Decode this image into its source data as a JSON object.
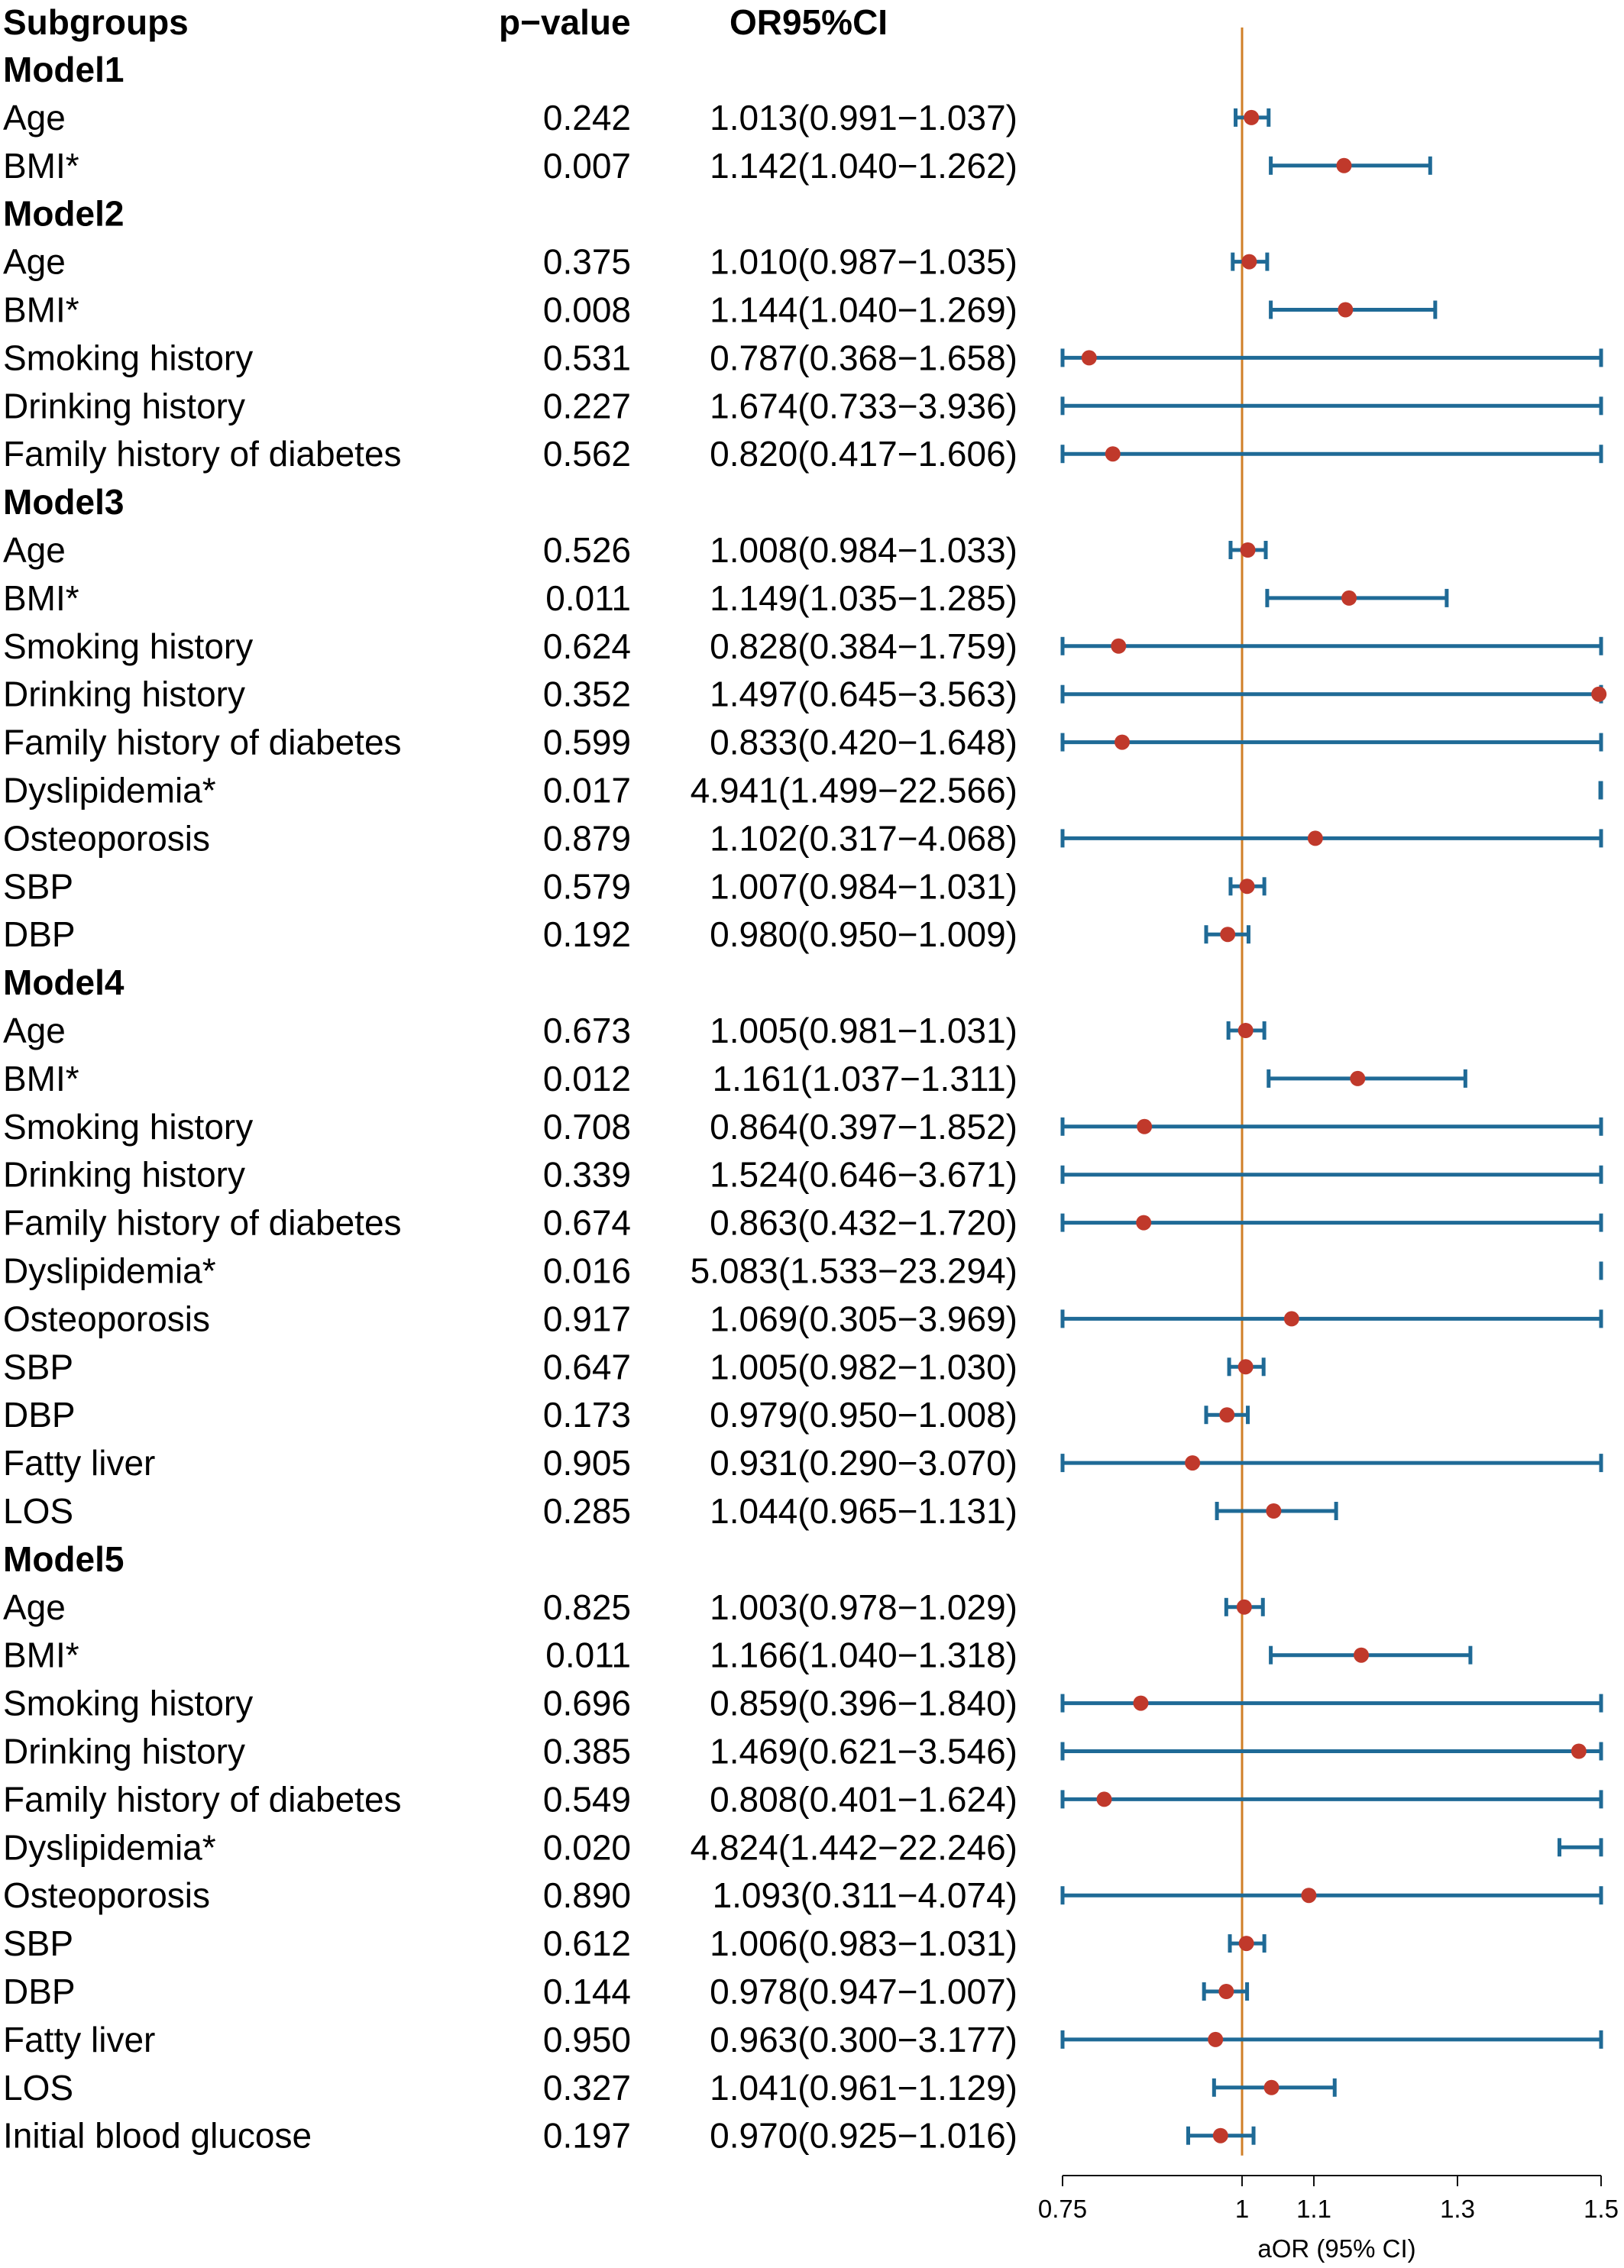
{
  "chart_data": {
    "type": "forest",
    "headers": {
      "subgroups": "Subgroups",
      "pvalue": "p−value",
      "or": "OR95%CI"
    },
    "xlabel": "aOR (95% CI)",
    "xlim": [
      0.75,
      1.5
    ],
    "reference_line": 1,
    "ticks": [
      {
        "value": 0.75,
        "label": "0.75"
      },
      {
        "value": 1.0,
        "label": "1"
      },
      {
        "value": 1.1,
        "label": "1.1"
      },
      {
        "value": 1.3,
        "label": "1.3"
      },
      {
        "value": 1.5,
        "label": "1.5"
      }
    ],
    "colors": {
      "point": "#c0392b",
      "ci": "#1f6a96",
      "reference": "#d07f27"
    },
    "models": [
      {
        "name": "Model1",
        "rows": [
          {
            "label": "Age",
            "p": "0.242",
            "or_text": "1.013(0.991−1.037)",
            "or": 1.013,
            "lo": 0.991,
            "hi": 1.037
          },
          {
            "label": "BMI*",
            "p": "0.007",
            "or_text": "1.142(1.040−1.262)",
            "or": 1.142,
            "lo": 1.04,
            "hi": 1.262
          }
        ]
      },
      {
        "name": "Model2",
        "rows": [
          {
            "label": "Age",
            "p": "0.375",
            "or_text": "1.010(0.987−1.035)",
            "or": 1.01,
            "lo": 0.987,
            "hi": 1.035
          },
          {
            "label": "BMI*",
            "p": "0.008",
            "or_text": "1.144(1.040−1.269)",
            "or": 1.144,
            "lo": 1.04,
            "hi": 1.269
          },
          {
            "label": "Smoking history",
            "p": "0.531",
            "or_text": "0.787(0.368−1.658)",
            "or": 0.787,
            "lo": 0.368,
            "hi": 1.658
          },
          {
            "label": "Drinking history",
            "p": "0.227",
            "or_text": "1.674(0.733−3.936)",
            "or": 1.674,
            "lo": 0.733,
            "hi": 3.936
          },
          {
            "label": "Family history of diabetes",
            "p": "0.562",
            "or_text": "0.820(0.417−1.606)",
            "or": 0.82,
            "lo": 0.417,
            "hi": 1.606
          }
        ]
      },
      {
        "name": "Model3",
        "rows": [
          {
            "label": "Age",
            "p": "0.526",
            "or_text": "1.008(0.984−1.033)",
            "or": 1.008,
            "lo": 0.984,
            "hi": 1.033
          },
          {
            "label": "BMI*",
            "p": "0.011",
            "or_text": "1.149(1.035−1.285)",
            "or": 1.149,
            "lo": 1.035,
            "hi": 1.285
          },
          {
            "label": "Smoking history",
            "p": "0.624",
            "or_text": "0.828(0.384−1.759)",
            "or": 0.828,
            "lo": 0.384,
            "hi": 1.759
          },
          {
            "label": "Drinking history",
            "p": "0.352",
            "or_text": "1.497(0.645−3.563)",
            "or": 1.497,
            "lo": 0.645,
            "hi": 3.563
          },
          {
            "label": "Family history of diabetes",
            "p": "0.599",
            "or_text": "0.833(0.420−1.648)",
            "or": 0.833,
            "lo": 0.42,
            "hi": 1.648
          },
          {
            "label": "Dyslipidemia*",
            "p": "0.017",
            "or_text": "4.941(1.499−22.566)",
            "or": 4.941,
            "lo": 1.499,
            "hi": 22.566
          },
          {
            "label": "Osteoporosis",
            "p": "0.879",
            "or_text": "1.102(0.317−4.068)",
            "or": 1.102,
            "lo": 0.317,
            "hi": 4.068
          },
          {
            "label": "SBP",
            "p": "0.579",
            "or_text": "1.007(0.984−1.031)",
            "or": 1.007,
            "lo": 0.984,
            "hi": 1.031
          },
          {
            "label": "DBP",
            "p": "0.192",
            "or_text": "0.980(0.950−1.009)",
            "or": 0.98,
            "lo": 0.95,
            "hi": 1.009
          }
        ]
      },
      {
        "name": "Model4",
        "rows": [
          {
            "label": "Age",
            "p": "0.673",
            "or_text": "1.005(0.981−1.031)",
            "or": 1.005,
            "lo": 0.981,
            "hi": 1.031
          },
          {
            "label": "BMI*",
            "p": "0.012",
            "or_text": "1.161(1.037−1.311)",
            "or": 1.161,
            "lo": 1.037,
            "hi": 1.311
          },
          {
            "label": "Smoking history",
            "p": "0.708",
            "or_text": "0.864(0.397−1.852)",
            "or": 0.864,
            "lo": 0.397,
            "hi": 1.852
          },
          {
            "label": "Drinking history",
            "p": "0.339",
            "or_text": "1.524(0.646−3.671)",
            "or": 1.524,
            "lo": 0.646,
            "hi": 3.671
          },
          {
            "label": "Family history of diabetes",
            "p": "0.674",
            "or_text": "0.863(0.432−1.720)",
            "or": 0.863,
            "lo": 0.432,
            "hi": 1.72
          },
          {
            "label": "Dyslipidemia*",
            "p": "0.016",
            "or_text": "5.083(1.533−23.294)",
            "or": 5.083,
            "lo": 1.533,
            "hi": 23.294
          },
          {
            "label": "Osteoporosis",
            "p": "0.917",
            "or_text": "1.069(0.305−3.969)",
            "or": 1.069,
            "lo": 0.305,
            "hi": 3.969
          },
          {
            "label": "SBP",
            "p": "0.647",
            "or_text": "1.005(0.982−1.030)",
            "or": 1.005,
            "lo": 0.982,
            "hi": 1.03
          },
          {
            "label": "DBP",
            "p": "0.173",
            "or_text": "0.979(0.950−1.008)",
            "or": 0.979,
            "lo": 0.95,
            "hi": 1.008
          },
          {
            "label": "Fatty liver",
            "p": "0.905",
            "or_text": "0.931(0.290−3.070)",
            "or": 0.931,
            "lo": 0.29,
            "hi": 3.07
          },
          {
            "label": "LOS",
            "p": "0.285",
            "or_text": "1.044(0.965−1.131)",
            "or": 1.044,
            "lo": 0.965,
            "hi": 1.131
          }
        ]
      },
      {
        "name": "Model5",
        "rows": [
          {
            "label": "Age",
            "p": "0.825",
            "or_text": "1.003(0.978−1.029)",
            "or": 1.003,
            "lo": 0.978,
            "hi": 1.029
          },
          {
            "label": "BMI*",
            "p": "0.011",
            "or_text": "1.166(1.040−1.318)",
            "or": 1.166,
            "lo": 1.04,
            "hi": 1.318
          },
          {
            "label": "Smoking history",
            "p": "0.696",
            "or_text": "0.859(0.396−1.840)",
            "or": 0.859,
            "lo": 0.396,
            "hi": 1.84
          },
          {
            "label": "Drinking history",
            "p": "0.385",
            "or_text": "1.469(0.621−3.546)",
            "or": 1.469,
            "lo": 0.621,
            "hi": 3.546
          },
          {
            "label": "Family history of diabetes",
            "p": "0.549",
            "or_text": "0.808(0.401−1.624)",
            "or": 0.808,
            "lo": 0.401,
            "hi": 1.624
          },
          {
            "label": "Dyslipidemia*",
            "p": "0.020",
            "or_text": "4.824(1.442−22.246)",
            "or": 4.824,
            "lo": 1.442,
            "hi": 22.246
          },
          {
            "label": "Osteoporosis",
            "p": "0.890",
            "or_text": "1.093(0.311−4.074)",
            "or": 1.093,
            "lo": 0.311,
            "hi": 4.074
          },
          {
            "label": "SBP",
            "p": "0.612",
            "or_text": "1.006(0.983−1.031)",
            "or": 1.006,
            "lo": 0.983,
            "hi": 1.031
          },
          {
            "label": "DBP",
            "p": "0.144",
            "or_text": "0.978(0.947−1.007)",
            "or": 0.978,
            "lo": 0.947,
            "hi": 1.007
          },
          {
            "label": "Fatty liver",
            "p": "0.950",
            "or_text": "0.963(0.300−3.177)",
            "or": 0.963,
            "lo": 0.3,
            "hi": 3.177
          },
          {
            "label": "LOS",
            "p": "0.327",
            "or_text": "1.041(0.961−1.129)",
            "or": 1.041,
            "lo": 0.961,
            "hi": 1.129
          },
          {
            "label": "Initial blood glucose",
            "p": "0.197",
            "or_text": "0.970(0.925−1.016)",
            "or": 0.97,
            "lo": 0.925,
            "hi": 1.016
          }
        ]
      }
    ]
  }
}
